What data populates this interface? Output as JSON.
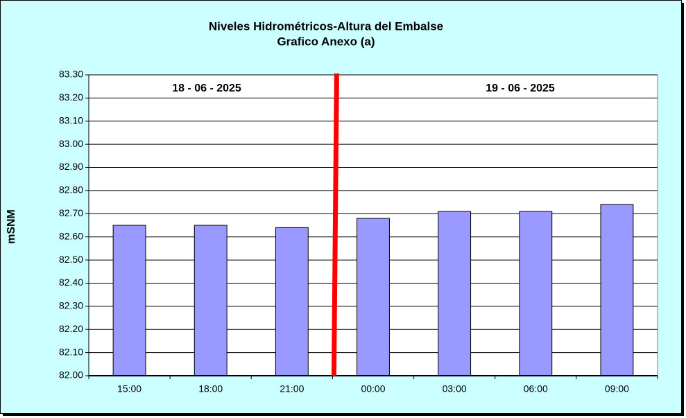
{
  "chart_data": {
    "type": "bar",
    "title": "Niveles Hidrométricos-Altura del Embalse",
    "subtitle": "Grafico Anexo (a)",
    "y_label": "mSNM",
    "annotations": [
      "18 - 06 - 2025",
      "19 - 06 - 2025"
    ],
    "categories": [
      "15:00",
      "18:00",
      "21:00",
      "00:00",
      "03:00",
      "06:00",
      "09:00"
    ],
    "values": [
      82.65,
      82.65,
      82.64,
      82.68,
      82.71,
      82.71,
      82.74
    ],
    "color": "#9999ff",
    "ylim": [
      82.0,
      83.3
    ],
    "yticks": [
      {
        "value": 82.0,
        "label": "82.00"
      },
      {
        "value": 82.1,
        "label": "82.10"
      },
      {
        "value": 82.2,
        "label": "82.20"
      },
      {
        "value": 82.3,
        "label": "82.30"
      },
      {
        "value": 82.4,
        "label": "82.40"
      },
      {
        "value": 82.5,
        "label": "82.50"
      },
      {
        "value": 82.6,
        "label": "82.60"
      },
      {
        "value": 82.7,
        "label": "82.70"
      },
      {
        "value": 82.8,
        "label": "82.80"
      },
      {
        "value": 82.9,
        "label": "82.90"
      },
      {
        "value": 83.0,
        "label": "83.00"
      },
      {
        "value": 83.1,
        "label": "83.10"
      },
      {
        "value": 83.2,
        "label": "83.20"
      },
      {
        "value": 83.3,
        "label": "83.30"
      }
    ],
    "grid": true
  }
}
